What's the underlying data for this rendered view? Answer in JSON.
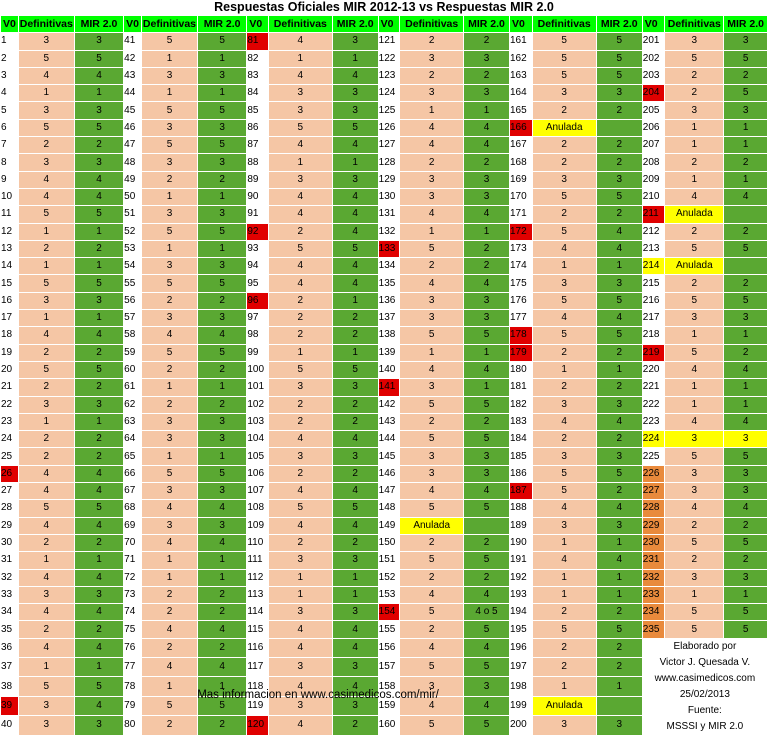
{
  "title": "Respuestas Oficiales MIR 2012-13 vs Respuestas MIR 2.0",
  "footer": "Mas informacion en www.casimedicos.com/mir/",
  "headers": [
    "V0",
    "Definitivas",
    "MIR 2.0"
  ],
  "colors": {
    "header": "#00ff00",
    "definitivas": "#f5c6a5",
    "mir": "#5aa832",
    "mismatch": "#e00000",
    "orange": "#e98a3c",
    "anulada": "#ffff00"
  },
  "anulada_label": "Anulada",
  "groups": [
    {
      "rows": [
        [
          1,
          "3",
          "3"
        ],
        [
          2,
          "5",
          "5"
        ],
        [
          3,
          "4",
          "4"
        ],
        [
          4,
          "1",
          "1"
        ],
        [
          5,
          "3",
          "3"
        ],
        [
          6,
          "5",
          "5"
        ],
        [
          7,
          "2",
          "2"
        ],
        [
          8,
          "3",
          "3"
        ],
        [
          9,
          "4",
          "4"
        ],
        [
          10,
          "4",
          "4"
        ],
        [
          11,
          "5",
          "5"
        ],
        [
          12,
          "1",
          "1"
        ],
        [
          13,
          "2",
          "2"
        ],
        [
          14,
          "1",
          "1"
        ],
        [
          15,
          "5",
          "5"
        ],
        [
          16,
          "3",
          "3"
        ],
        [
          17,
          "1",
          "1"
        ],
        [
          18,
          "4",
          "4"
        ],
        [
          19,
          "2",
          "2"
        ],
        [
          20,
          "5",
          "5"
        ],
        [
          21,
          "2",
          "2"
        ],
        [
          22,
          "3",
          "3"
        ],
        [
          23,
          "1",
          "1"
        ],
        [
          24,
          "2",
          "2"
        ],
        [
          25,
          "2",
          "2"
        ],
        [
          26,
          "4",
          "4"
        ],
        [
          27,
          "4",
          "4"
        ],
        [
          28,
          "5",
          "5"
        ],
        [
          29,
          "4",
          "4"
        ],
        [
          30,
          "2",
          "2"
        ],
        [
          31,
          "1",
          "1"
        ],
        [
          32,
          "4",
          "4"
        ],
        [
          33,
          "3",
          "3"
        ],
        [
          34,
          "4",
          "4"
        ],
        [
          35,
          "2",
          "2"
        ],
        [
          36,
          "4",
          "4"
        ],
        [
          37,
          "1",
          "1"
        ],
        [
          38,
          "5",
          "5"
        ],
        [
          39,
          "3",
          "4"
        ],
        [
          40,
          "3",
          "3"
        ]
      ],
      "red": [
        26,
        39
      ],
      "orange": [],
      "yellow": [],
      "anulada": []
    },
    {
      "rows": [
        [
          41,
          "5",
          "5"
        ],
        [
          42,
          "1",
          "1"
        ],
        [
          43,
          "3",
          "3"
        ],
        [
          44,
          "1",
          "1"
        ],
        [
          45,
          "5",
          "5"
        ],
        [
          46,
          "3",
          "3"
        ],
        [
          47,
          "5",
          "5"
        ],
        [
          48,
          "3",
          "3"
        ],
        [
          49,
          "2",
          "2"
        ],
        [
          50,
          "1",
          "1"
        ],
        [
          51,
          "3",
          "3"
        ],
        [
          52,
          "5",
          "5"
        ],
        [
          53,
          "1",
          "1"
        ],
        [
          54,
          "3",
          "3"
        ],
        [
          55,
          "5",
          "5"
        ],
        [
          56,
          "2",
          "2"
        ],
        [
          57,
          "3",
          "3"
        ],
        [
          58,
          "4",
          "4"
        ],
        [
          59,
          "5",
          "5"
        ],
        [
          60,
          "2",
          "2"
        ],
        [
          61,
          "1",
          "1"
        ],
        [
          62,
          "2",
          "2"
        ],
        [
          63,
          "3",
          "3"
        ],
        [
          64,
          "3",
          "3"
        ],
        [
          65,
          "1",
          "1"
        ],
        [
          66,
          "5",
          "5"
        ],
        [
          67,
          "3",
          "3"
        ],
        [
          68,
          "4",
          "4"
        ],
        [
          69,
          "3",
          "3"
        ],
        [
          70,
          "4",
          "4"
        ],
        [
          71,
          "1",
          "1"
        ],
        [
          72,
          "1",
          "1"
        ],
        [
          73,
          "2",
          "2"
        ],
        [
          74,
          "2",
          "2"
        ],
        [
          75,
          "4",
          "4"
        ],
        [
          76,
          "2",
          "2"
        ],
        [
          77,
          "4",
          "4"
        ],
        [
          78,
          "1",
          "1"
        ],
        [
          79,
          "5",
          "5"
        ],
        [
          80,
          "2",
          "2"
        ]
      ],
      "red": [],
      "orange": [],
      "yellow": [],
      "anulada": []
    },
    {
      "rows": [
        [
          81,
          "4",
          "3"
        ],
        [
          82,
          "1",
          "1"
        ],
        [
          83,
          "4",
          "4"
        ],
        [
          84,
          "3",
          "3"
        ],
        [
          85,
          "3",
          "3"
        ],
        [
          86,
          "5",
          "5"
        ],
        [
          87,
          "4",
          "4"
        ],
        [
          88,
          "1",
          "1"
        ],
        [
          89,
          "3",
          "3"
        ],
        [
          90,
          "4",
          "4"
        ],
        [
          91,
          "4",
          "4"
        ],
        [
          92,
          "2",
          "4"
        ],
        [
          93,
          "5",
          "5"
        ],
        [
          94,
          "4",
          "4"
        ],
        [
          95,
          "4",
          "4"
        ],
        [
          96,
          "2",
          "1"
        ],
        [
          97,
          "2",
          "2"
        ],
        [
          98,
          "2",
          "2"
        ],
        [
          99,
          "1",
          "1"
        ],
        [
          100,
          "5",
          "5"
        ],
        [
          101,
          "3",
          "3"
        ],
        [
          102,
          "2",
          "2"
        ],
        [
          103,
          "2",
          "2"
        ],
        [
          104,
          "4",
          "4"
        ],
        [
          105,
          "3",
          "3"
        ],
        [
          106,
          "2",
          "2"
        ],
        [
          107,
          "4",
          "4"
        ],
        [
          108,
          "5",
          "5"
        ],
        [
          109,
          "4",
          "4"
        ],
        [
          110,
          "2",
          "2"
        ],
        [
          111,
          "3",
          "3"
        ],
        [
          112,
          "1",
          "1"
        ],
        [
          113,
          "1",
          "1"
        ],
        [
          114,
          "3",
          "3"
        ],
        [
          115,
          "4",
          "4"
        ],
        [
          116,
          "4",
          "4"
        ],
        [
          117,
          "3",
          "3"
        ],
        [
          118,
          "4",
          "4"
        ],
        [
          119,
          "3",
          "3"
        ],
        [
          120,
          "4",
          "2"
        ]
      ],
      "red": [
        81,
        92,
        96,
        120
      ],
      "orange": [],
      "yellow": [],
      "anulada": []
    },
    {
      "rows": [
        [
          121,
          "2",
          "2"
        ],
        [
          122,
          "3",
          "3"
        ],
        [
          123,
          "2",
          "2"
        ],
        [
          124,
          "3",
          "3"
        ],
        [
          125,
          "1",
          "1"
        ],
        [
          126,
          "4",
          "4"
        ],
        [
          127,
          "4",
          "4"
        ],
        [
          128,
          "2",
          "2"
        ],
        [
          129,
          "3",
          "3"
        ],
        [
          130,
          "3",
          "3"
        ],
        [
          131,
          "4",
          "4"
        ],
        [
          132,
          "1",
          "1"
        ],
        [
          133,
          "5",
          "2"
        ],
        [
          134,
          "2",
          "2"
        ],
        [
          135,
          "4",
          "4"
        ],
        [
          136,
          "3",
          "3"
        ],
        [
          137,
          "3",
          "3"
        ],
        [
          138,
          "5",
          "5"
        ],
        [
          139,
          "1",
          "1"
        ],
        [
          140,
          "4",
          "4"
        ],
        [
          141,
          "3",
          "1"
        ],
        [
          142,
          "5",
          "5"
        ],
        [
          143,
          "2",
          "2"
        ],
        [
          144,
          "5",
          "5"
        ],
        [
          145,
          "3",
          "3"
        ],
        [
          146,
          "3",
          "3"
        ],
        [
          147,
          "4",
          "4"
        ],
        [
          148,
          "5",
          "5"
        ],
        [
          149,
          "",
          ""
        ],
        [
          150,
          "2",
          "2"
        ],
        [
          151,
          "5",
          "5"
        ],
        [
          152,
          "2",
          "2"
        ],
        [
          153,
          "4",
          "4"
        ],
        [
          154,
          "5",
          "4 o 5"
        ],
        [
          155,
          "2",
          "5"
        ],
        [
          156,
          "4",
          "4"
        ],
        [
          157,
          "5",
          "5"
        ],
        [
          158,
          "3",
          "3"
        ],
        [
          159,
          "4",
          "4"
        ],
        [
          160,
          "5",
          "5"
        ]
      ],
      "red": [
        133,
        141,
        154
      ],
      "orange": [],
      "yellow": [],
      "anulada": [
        149
      ]
    },
    {
      "rows": [
        [
          161,
          "5",
          "5"
        ],
        [
          162,
          "5",
          "5"
        ],
        [
          163,
          "5",
          "5"
        ],
        [
          164,
          "3",
          "3"
        ],
        [
          165,
          "2",
          "2"
        ],
        [
          166,
          "",
          ""
        ],
        [
          167,
          "2",
          "2"
        ],
        [
          168,
          "2",
          "2"
        ],
        [
          169,
          "3",
          "3"
        ],
        [
          170,
          "5",
          "5"
        ],
        [
          171,
          "2",
          "2"
        ],
        [
          172,
          "5",
          "4"
        ],
        [
          173,
          "4",
          "4"
        ],
        [
          174,
          "1",
          "1"
        ],
        [
          175,
          "3",
          "3"
        ],
        [
          176,
          "5",
          "5"
        ],
        [
          177,
          "4",
          "4"
        ],
        [
          178,
          "5",
          "5"
        ],
        [
          179,
          "2",
          "2"
        ],
        [
          180,
          "1",
          "1"
        ],
        [
          181,
          "2",
          "2"
        ],
        [
          182,
          "3",
          "3"
        ],
        [
          183,
          "4",
          "4"
        ],
        [
          184,
          "2",
          "2"
        ],
        [
          185,
          "3",
          "3"
        ],
        [
          186,
          "5",
          "5"
        ],
        [
          187,
          "5",
          "2"
        ],
        [
          188,
          "4",
          "4"
        ],
        [
          189,
          "3",
          "3"
        ],
        [
          190,
          "1",
          "1"
        ],
        [
          191,
          "4",
          "4"
        ],
        [
          192,
          "1",
          "1"
        ],
        [
          193,
          "1",
          "1"
        ],
        [
          194,
          "2",
          "2"
        ],
        [
          195,
          "5",
          "5"
        ],
        [
          196,
          "2",
          "2"
        ],
        [
          197,
          "2",
          "2"
        ],
        [
          198,
          "1",
          "1"
        ],
        [
          199,
          "",
          ""
        ],
        [
          200,
          "3",
          "3"
        ]
      ],
      "red": [
        166,
        172,
        178,
        179,
        187
      ],
      "orange": [],
      "yellow": [],
      "anulada": [
        166,
        199
      ]
    },
    {
      "rows": [
        [
          201,
          "3",
          "3"
        ],
        [
          202,
          "5",
          "5"
        ],
        [
          203,
          "2",
          "2"
        ],
        [
          204,
          "2",
          "5"
        ],
        [
          205,
          "3",
          "3"
        ],
        [
          206,
          "1",
          "1"
        ],
        [
          207,
          "1",
          "1"
        ],
        [
          208,
          "2",
          "2"
        ],
        [
          209,
          "1",
          "1"
        ],
        [
          210,
          "4",
          "4"
        ],
        [
          211,
          "",
          ""
        ],
        [
          212,
          "2",
          "2"
        ],
        [
          213,
          "5",
          "5"
        ],
        [
          214,
          "",
          ""
        ],
        [
          215,
          "2",
          "2"
        ],
        [
          216,
          "5",
          "5"
        ],
        [
          217,
          "3",
          "3"
        ],
        [
          218,
          "1",
          "1"
        ],
        [
          219,
          "5",
          "2"
        ],
        [
          220,
          "4",
          "4"
        ],
        [
          221,
          "1",
          "1"
        ],
        [
          222,
          "1",
          "1"
        ],
        [
          223,
          "4",
          "4"
        ],
        [
          224,
          "3",
          "3"
        ],
        [
          225,
          "5",
          "5"
        ],
        [
          226,
          "3",
          "3"
        ],
        [
          227,
          "3",
          "3"
        ],
        [
          228,
          "4",
          "4"
        ],
        [
          229,
          "2",
          "2"
        ],
        [
          230,
          "5",
          "5"
        ],
        [
          231,
          "2",
          "2"
        ],
        [
          232,
          "3",
          "3"
        ],
        [
          233,
          "1",
          "1"
        ],
        [
          234,
          "5",
          "5"
        ],
        [
          235,
          "5",
          "5"
        ]
      ],
      "red": [
        204,
        211,
        219
      ],
      "orange": [
        226,
        227,
        228,
        229,
        230,
        231,
        232,
        233,
        234,
        235
      ],
      "yellow": [
        214,
        224
      ],
      "anulada": [
        211,
        214
      ]
    }
  ],
  "row224_full_yellow": true,
  "credits": [
    "Elaborado por",
    "Victor J. Quesada V.",
    "www.casimedicos.com",
    "25/02/2013",
    "Fuente:",
    "MSSSI y MIR 2.0"
  ]
}
